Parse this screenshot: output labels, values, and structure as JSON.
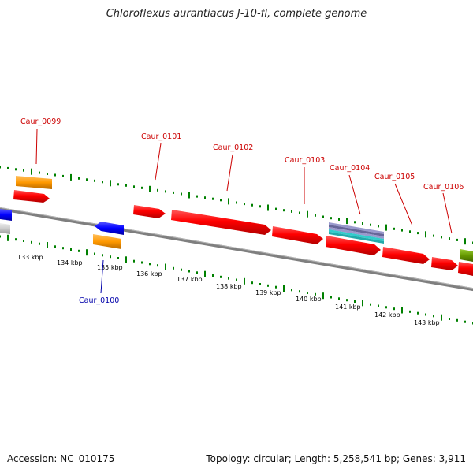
{
  "title": "Chloroflexus aurantiacus J-10-fl, complete genome",
  "footer": {
    "accession": "Accession: NC_010175",
    "summary": "Topology: circular; Length: 5,258,541 bp; Genes: 3,911"
  },
  "colors": {
    "cds": "#ff0000",
    "orange": "#ff9900",
    "blue": "#0000ff",
    "grey": "#cccccc",
    "olive": "#669900",
    "teal": "#33cccc",
    "purple": "#666699",
    "backbone": "#808080",
    "ticks": "#008000",
    "label_forward": "#cc0000",
    "label_reverse": "#0000aa"
  },
  "scale_labels": [
    "133 kbp",
    "134 kbp",
    "135 kbp",
    "136 kbp",
    "137 kbp",
    "138 kbp",
    "139 kbp",
    "140 kbp",
    "141 kbp",
    "142 kbp",
    "143 kbp"
  ],
  "gene_labels": [
    "Caur_0099",
    "Caur_0100",
    "Caur_0101",
    "Caur_0102",
    "Caur_0103",
    "Caur_0104",
    "Caur_0105",
    "Caur_0106"
  ]
}
